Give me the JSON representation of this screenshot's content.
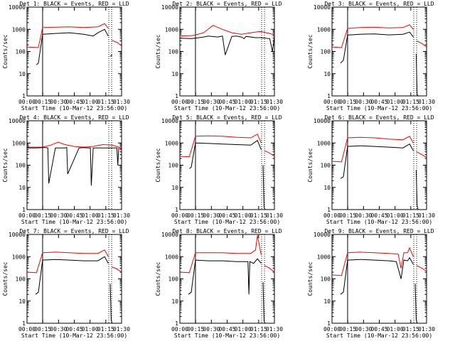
{
  "chart_data": [
    {
      "type": "line",
      "title": "Det  1: BLACK = Events, RED = LLD",
      "xlabel": "Start Time (10-Mar-12 23:56:00)",
      "ylabel": "Counts/sec",
      "xlim": [
        0,
        100
      ],
      "ylim": [
        1,
        10000
      ],
      "xticks": [
        "00:00",
        "00:15",
        "00:30",
        "00:45",
        "01:00",
        "01:15",
        "01:30"
      ],
      "yticks": [
        "1",
        "10",
        "100",
        "1000",
        "10000"
      ],
      "vlines": [
        16.5,
        86.5,
        89.5
      ],
      "series": [
        {
          "name": "RED = LLD",
          "color": "#ff0000",
          "x": [
            0,
            12,
            16.5,
            30,
            45,
            60,
            75,
            82,
            86,
            86.5,
            89.5,
            95,
            100
          ],
          "y": [
            160,
            150,
            1200,
            1250,
            1300,
            1200,
            1300,
            1800,
            1100,
            null,
            320,
            260,
            180
          ]
        },
        {
          "name": "BLACK = Events",
          "color": "#000000",
          "x": [
            10,
            12,
            16.5,
            30,
            45,
            60,
            70,
            75,
            82,
            86,
            86.5,
            88,
            90
          ],
          "y": [
            25,
            30,
            600,
            650,
            700,
            600,
            500,
            700,
            1000,
            500,
            null,
            60,
            70
          ]
        }
      ]
    },
    {
      "type": "line",
      "title": "Det  2: BLACK = Events, RED = LLD",
      "xlabel": "Start Time (10-Mar-12 23:56:00)",
      "ylabel": "Counts/sec",
      "xlim": [
        0,
        100
      ],
      "ylim": [
        1,
        10000
      ],
      "xticks": [
        "00:00",
        "00:15",
        "00:30",
        "00:45",
        "01:00",
        "01:15",
        "01:30"
      ],
      "yticks": [
        "1",
        "10",
        "100",
        "1000",
        "10000"
      ],
      "vlines": [
        16.5,
        86.5,
        89.5
      ],
      "series": [
        {
          "name": "RED = LLD",
          "color": "#ff0000",
          "x": [
            0,
            12,
            16,
            25,
            35,
            45,
            55,
            65,
            75,
            85,
            95,
            100
          ],
          "y": [
            500,
            520,
            550,
            700,
            1500,
            1000,
            700,
            600,
            700,
            800,
            650,
            550
          ]
        },
        {
          "name": "BLACK = Events",
          "color": "#000000",
          "x": [
            0,
            12,
            16,
            25,
            30,
            40,
            45,
            48,
            55,
            60,
            65,
            68,
            70,
            80,
            85,
            95,
            98,
            100
          ],
          "y": [
            400,
            380,
            400,
            450,
            500,
            450,
            500,
            70,
            480,
            500,
            450,
            380,
            480,
            420,
            420,
            380,
            100,
            500
          ]
        }
      ]
    },
    {
      "type": "line",
      "title": "Det  3: BLACK = Events, RED = LLD",
      "xlabel": "Start Time (10-Mar-12 23:56:00)",
      "ylabel": "Counts/sec",
      "xlim": [
        0,
        100
      ],
      "ylim": [
        1,
        10000
      ],
      "xticks": [
        "00:00",
        "00:15",
        "00:30",
        "00:45",
        "01:00",
        "01:15",
        "01:30"
      ],
      "yticks": [
        "1",
        "10",
        "100",
        "1000",
        "10000"
      ],
      "vlines": [
        16.5,
        86.5,
        89.5
      ],
      "series": [
        {
          "name": "RED = LLD",
          "color": "#ff0000",
          "x": [
            0,
            10,
            16.5,
            30,
            45,
            60,
            75,
            82,
            86,
            86.5,
            89.5,
            95,
            100
          ],
          "y": [
            160,
            150,
            1100,
            1200,
            1250,
            1150,
            1200,
            1600,
            1000,
            null,
            300,
            230,
            160
          ]
        },
        {
          "name": "BLACK = Events",
          "color": "#000000",
          "x": [
            9,
            12,
            16.5,
            30,
            45,
            60,
            75,
            82,
            86,
            86.5,
            89,
            90,
            91
          ],
          "y": [
            30,
            40,
            550,
            600,
            620,
            560,
            600,
            750,
            450,
            null,
            80,
            1.2,
            1
          ]
        }
      ]
    },
    {
      "type": "line",
      "title": "Det  4: BLACK = Events, RED = LLD",
      "xlabel": "Start Time (10-Mar-12 23:56:00)",
      "ylabel": "Counts/sec",
      "xlim": [
        0,
        100
      ],
      "ylim": [
        1,
        10000
      ],
      "xticks": [
        "00:00",
        "00:15",
        "00:30",
        "00:45",
        "01:00",
        "01:15",
        "01:30"
      ],
      "yticks": [
        "1",
        "10",
        "100",
        "1000",
        "10000"
      ],
      "vlines": [
        16.5,
        86.5,
        89.5
      ],
      "series": [
        {
          "name": "RED = LLD",
          "color": "#ff0000",
          "x": [
            0,
            10,
            16.5,
            25,
            33,
            40,
            50,
            60,
            70,
            80,
            90,
            97,
            100
          ],
          "y": [
            650,
            650,
            650,
            800,
            1100,
            850,
            700,
            650,
            700,
            850,
            800,
            650,
            500
          ]
        },
        {
          "name": "BLACK = Events",
          "color": "#000000",
          "x": [
            0,
            10,
            16.5,
            20,
            22,
            23,
            30,
            40,
            42,
            43,
            55,
            60,
            65,
            67,
            68,
            70,
            95,
            96,
            97
          ],
          "y": [
            600,
            600,
            620,
            620,
            600,
            15,
            600,
            600,
            620,
            40,
            600,
            620,
            600,
            600,
            12,
            600,
            600,
            100,
            600
          ]
        }
      ]
    },
    {
      "type": "line",
      "title": "Det  5: BLACK = Events, RED = LLD",
      "xlabel": "Start Time (10-Mar-12 23:56:00)",
      "ylabel": "Counts/sec",
      "xlim": [
        0,
        100
      ],
      "ylim": [
        1,
        10000
      ],
      "xticks": [
        "00:00",
        "00:15",
        "00:30",
        "00:45",
        "01:00",
        "01:15",
        "01:30"
      ],
      "yticks": [
        "1",
        "10",
        "100",
        "1000",
        "10000"
      ],
      "vlines": [
        16.5,
        86.5,
        89.5
      ],
      "series": [
        {
          "name": "RED = LLD",
          "color": "#ff0000",
          "x": [
            0,
            10,
            16.5,
            30,
            45,
            60,
            75,
            82,
            86,
            86.5,
            89.5,
            95,
            100
          ],
          "y": [
            250,
            240,
            2000,
            2100,
            2000,
            1800,
            1700,
            2500,
            1000,
            null,
            450,
            350,
            250
          ]
        },
        {
          "name": "BLACK = Events",
          "color": "#000000",
          "x": [
            10,
            12,
            16.5,
            30,
            45,
            60,
            75,
            82,
            86,
            86.5,
            88,
            89,
            90
          ],
          "y": [
            70,
            80,
            1000,
            950,
            900,
            850,
            800,
            1300,
            500,
            null,
            100,
            1.3,
            1
          ]
        }
      ]
    },
    {
      "type": "line",
      "title": "Det  6: BLACK = Events, RED = LLD",
      "xlabel": "Start Time (10-Mar-12 23:56:00)",
      "ylabel": "Counts/sec",
      "xlim": [
        0,
        100
      ],
      "ylim": [
        1,
        10000
      ],
      "xticks": [
        "00:00",
        "00:15",
        "00:30",
        "00:45",
        "01:00",
        "01:15",
        "01:30"
      ],
      "yticks": [
        "1",
        "10",
        "100",
        "1000",
        "10000"
      ],
      "vlines": [
        16.5,
        86.5,
        89.5
      ],
      "series": [
        {
          "name": "RED = LLD",
          "color": "#ff0000",
          "x": [
            0,
            10,
            16.5,
            30,
            45,
            60,
            75,
            82,
            86,
            86.5,
            89.5,
            95,
            100
          ],
          "y": [
            150,
            140,
            1700,
            1800,
            1700,
            1500,
            1400,
            2000,
            1000,
            null,
            400,
            300,
            220
          ]
        },
        {
          "name": "BLACK = Events",
          "color": "#000000",
          "x": [
            9,
            12,
            16.5,
            30,
            45,
            60,
            75,
            82,
            86,
            86.5,
            89,
            90,
            91
          ],
          "y": [
            25,
            30,
            700,
            750,
            700,
            650,
            600,
            900,
            450,
            null,
            60,
            1.5,
            1
          ]
        }
      ]
    },
    {
      "type": "line",
      "title": "Det  7: BLACK = Events, RED = LLD",
      "xlabel": "Start Time (10-Mar-12 23:56:00)",
      "ylabel": "Counts/sec",
      "xlim": [
        0,
        100
      ],
      "ylim": [
        1,
        10000
      ],
      "xticks": [
        "00:00",
        "00:15",
        "00:30",
        "00:45",
        "01:00",
        "01:15",
        "01:30"
      ],
      "yticks": [
        "1",
        "10",
        "100",
        "1000",
        "10000"
      ],
      "vlines": [
        16.5,
        86.5,
        89.5
      ],
      "series": [
        {
          "name": "RED = LLD",
          "color": "#ff0000",
          "x": [
            0,
            10,
            16.5,
            30,
            45,
            60,
            75,
            82,
            86,
            86.5,
            89.5,
            95,
            100
          ],
          "y": [
            200,
            190,
            1500,
            1600,
            1500,
            1400,
            1400,
            2000,
            1000,
            null,
            350,
            280,
            200
          ]
        },
        {
          "name": "BLACK = Events",
          "color": "#000000",
          "x": [
            9,
            12,
            16.5,
            30,
            45,
            60,
            75,
            82,
            86,
            86.5,
            88,
            89,
            90
          ],
          "y": [
            20,
            25,
            700,
            750,
            700,
            650,
            650,
            1000,
            500,
            null,
            60,
            1.4,
            1
          ]
        }
      ]
    },
    {
      "type": "line",
      "title": "Det  8: BLACK = Events, RED = LLD",
      "xlabel": "Start Time (10-Mar-12 23:56:00)",
      "ylabel": "Counts/sec",
      "xlim": [
        0,
        100
      ],
      "ylim": [
        1,
        10000
      ],
      "xticks": [
        "00:00",
        "00:15",
        "00:30",
        "00:45",
        "01:00",
        "01:15",
        "01:30"
      ],
      "yticks": [
        "1",
        "10",
        "100",
        "1000",
        "10000"
      ],
      "vlines": [
        16.5,
        86.5,
        89.5
      ],
      "series": [
        {
          "name": "RED = LLD",
          "color": "#ff0000",
          "x": [
            0,
            10,
            16.5,
            30,
            45,
            60,
            75,
            80,
            82,
            86,
            86.5,
            89.5,
            95,
            100
          ],
          "y": [
            200,
            190,
            1500,
            1500,
            1500,
            1400,
            1400,
            2000,
            9000,
            1200,
            null,
            400,
            300,
            200
          ]
        },
        {
          "name": "BLACK = Events",
          "color": "#000000",
          "x": [
            9,
            12,
            16.5,
            30,
            45,
            60,
            72,
            73,
            74,
            78,
            82,
            86,
            86.5,
            88,
            89,
            90
          ],
          "y": [
            20,
            25,
            700,
            650,
            650,
            600,
            600,
            20,
            600,
            500,
            800,
            500,
            null,
            70,
            1.3,
            1
          ]
        }
      ]
    },
    {
      "type": "line",
      "title": "Det  9: BLACK = Events, RED = LLD",
      "xlabel": "Start Time (10-Mar-12 23:56:00)",
      "ylabel": "Counts/sec",
      "xlim": [
        0,
        100
      ],
      "ylim": [
        1,
        10000
      ],
      "xticks": [
        "00:00",
        "00:15",
        "00:30",
        "00:45",
        "01:00",
        "01:15",
        "01:30"
      ],
      "yticks": [
        "1",
        "10",
        "100",
        "1000",
        "10000"
      ],
      "vlines": [
        16.5,
        86.5,
        89.5
      ],
      "series": [
        {
          "name": "RED = LLD",
          "color": "#ff0000",
          "x": [
            0,
            10,
            16.5,
            30,
            45,
            60,
            70,
            73,
            76,
            80,
            82,
            86,
            86.5,
            89.5,
            95,
            100
          ],
          "y": [
            150,
            140,
            1500,
            1600,
            1500,
            1400,
            1300,
            300,
            1500,
            1500,
            2500,
            1000,
            null,
            400,
            300,
            220
          ]
        },
        {
          "name": "BLACK = Events",
          "color": "#000000",
          "x": [
            9,
            12,
            16.5,
            30,
            45,
            60,
            68,
            73,
            76,
            80,
            82,
            86,
            86.5,
            88,
            89,
            90
          ],
          "y": [
            20,
            25,
            700,
            750,
            700,
            650,
            600,
            100,
            700,
            650,
            900,
            450,
            null,
            60,
            1.5,
            1
          ]
        }
      ]
    }
  ]
}
